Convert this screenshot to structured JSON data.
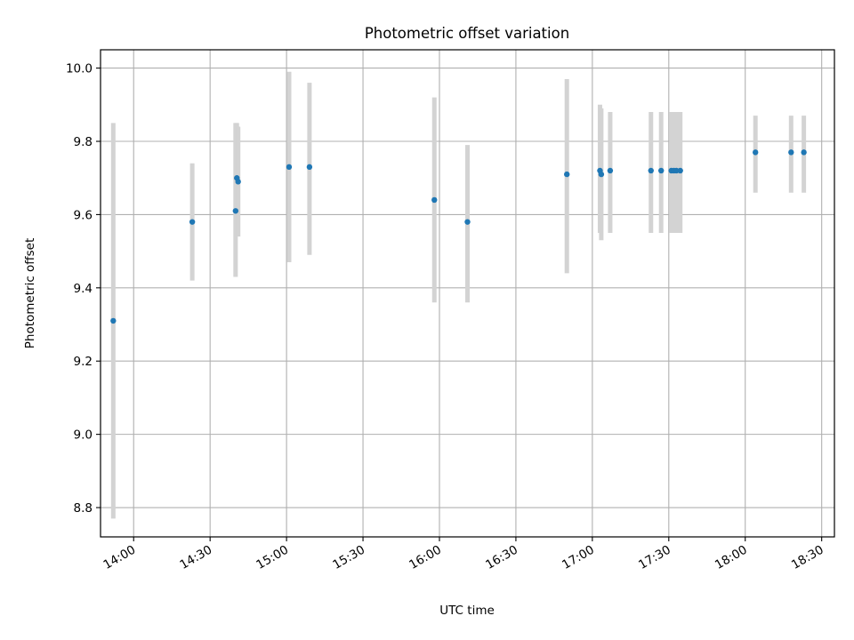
{
  "chart_data": {
    "type": "scatter",
    "title": "Photometric offset variation",
    "xlabel": "UTC time",
    "ylabel": "Photometric offset",
    "x_ticks": [
      "14:00",
      "14:30",
      "15:00",
      "15:30",
      "16:00",
      "16:30",
      "17:00",
      "17:30",
      "18:00",
      "18:30"
    ],
    "y_ticks": [
      "8.8",
      "9.0",
      "9.2",
      "9.4",
      "9.6",
      "9.8",
      "10.0"
    ],
    "xlim": [
      "13:47",
      "18:35"
    ],
    "ylim": [
      8.72,
      10.05
    ],
    "grid": true,
    "colors": {
      "point": "#1f77b4",
      "errorbar": "#d3d3d3",
      "grid": "#b0b0b0"
    },
    "points": [
      {
        "x": "13:52",
        "y": 9.31,
        "ylow": 8.77,
        "yhigh": 9.85
      },
      {
        "x": "14:23",
        "y": 9.58,
        "ylow": 9.42,
        "yhigh": 9.74
      },
      {
        "x": "14:40",
        "y": 9.61,
        "ylow": 9.43,
        "yhigh": 9.85
      },
      {
        "x": "14:40.5",
        "y": 9.7,
        "ylow": 9.55,
        "yhigh": 9.85
      },
      {
        "x": "14:41",
        "y": 9.69,
        "ylow": 9.54,
        "yhigh": 9.84
      },
      {
        "x": "15:01",
        "y": 9.73,
        "ylow": 9.47,
        "yhigh": 9.99
      },
      {
        "x": "15:09",
        "y": 9.73,
        "ylow": 9.49,
        "yhigh": 9.96
      },
      {
        "x": "15:58",
        "y": 9.64,
        "ylow": 9.36,
        "yhigh": 9.92
      },
      {
        "x": "16:11",
        "y": 9.58,
        "ylow": 9.36,
        "yhigh": 9.79
      },
      {
        "x": "16:50",
        "y": 9.71,
        "ylow": 9.44,
        "yhigh": 9.97
      },
      {
        "x": "17:03",
        "y": 9.72,
        "ylow": 9.55,
        "yhigh": 9.9
      },
      {
        "x": "17:03.5",
        "y": 9.71,
        "ylow": 9.53,
        "yhigh": 9.89
      },
      {
        "x": "17:07",
        "y": 9.72,
        "ylow": 9.55,
        "yhigh": 9.88
      },
      {
        "x": "17:23",
        "y": 9.72,
        "ylow": 9.55,
        "yhigh": 9.88
      },
      {
        "x": "17:27",
        "y": 9.72,
        "ylow": 9.55,
        "yhigh": 9.88
      },
      {
        "x": "17:31",
        "y": 9.72,
        "ylow": 9.55,
        "yhigh": 9.88
      },
      {
        "x": "17:32",
        "y": 9.72,
        "ylow": 9.55,
        "yhigh": 9.88
      },
      {
        "x": "17:33",
        "y": 9.72,
        "ylow": 9.55,
        "yhigh": 9.88
      },
      {
        "x": "17:34.5",
        "y": 9.72,
        "ylow": 9.55,
        "yhigh": 9.88
      },
      {
        "x": "18:04",
        "y": 9.77,
        "ylow": 9.66,
        "yhigh": 9.87
      },
      {
        "x": "18:18",
        "y": 9.77,
        "ylow": 9.66,
        "yhigh": 9.87
      },
      {
        "x": "18:23",
        "y": 9.77,
        "ylow": 9.66,
        "yhigh": 9.87
      }
    ]
  }
}
